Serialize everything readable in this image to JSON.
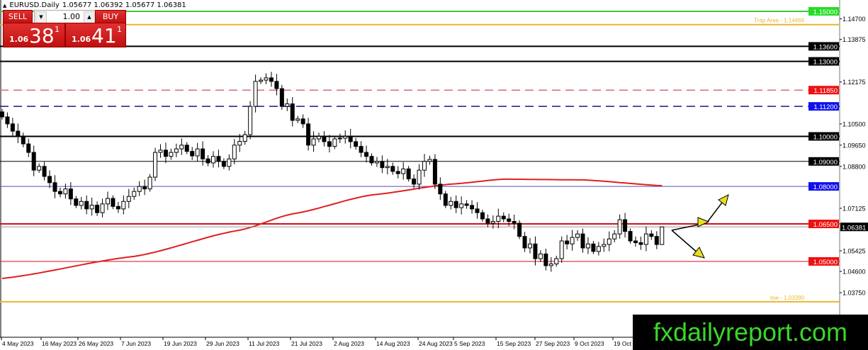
{
  "header": {
    "symbol": "EURUSD.Daily",
    "ohlc": "1.05677 1.06392 1.05677 1.06381"
  },
  "trade_panel": {
    "sell_label": "SELL",
    "buy_label": "BUY",
    "lots": "1.00",
    "sell_prefix": "1.06",
    "sell_big": "38",
    "sell_sup": "1",
    "buy_prefix": "1.06",
    "buy_big": "41",
    "buy_sup": "1"
  },
  "watermark": "fxdailyreport.com",
  "chart_data": {
    "type": "candlestick",
    "symbol": "EURUSD",
    "timeframe": "Daily",
    "ylim": [
      1.0305,
      1.1545
    ],
    "x_ticks": [
      "4 May 2023",
      "16 May 2023",
      "26 May 2023",
      "7 Jun 2023",
      "19 Jun 2023",
      "29 Jun 2023",
      "11 Jul 2023",
      "21 Jul 2023",
      "2 Aug 2023",
      "14 Aug 2023",
      "24 Aug 2023",
      "5 Sep 2023",
      "15 Sep 2023",
      "27 Sep 2023",
      "9 Oct 2023",
      "19 Oct"
    ],
    "y_ticks": [
      "1.14700",
      "1.13875",
      "1.12175",
      "1.10500",
      "1.09650",
      "1.08800",
      "1.07125",
      "1.05425",
      "1.04600",
      "1.03750"
    ],
    "closes": [
      1.1078,
      1.105,
      1.1021,
      1.1,
      1.097,
      1.0936,
      1.0865,
      1.088,
      1.084,
      1.0815,
      1.078,
      1.077,
      1.079,
      1.075,
      1.0724,
      1.074,
      1.071,
      1.0725,
      1.0695,
      1.073,
      1.0752,
      1.072,
      1.071,
      1.074,
      1.076,
      1.078,
      1.08,
      1.079,
      1.0837,
      1.0936,
      1.0945,
      1.092,
      1.0936,
      1.095,
      1.0965,
      1.094,
      1.0922,
      1.095,
      1.091,
      1.0894,
      1.092,
      1.09,
      1.088,
      1.091,
      1.0965,
      1.098,
      1.1007,
      1.112,
      1.122,
      1.1225,
      1.1234,
      1.122,
      1.1191,
      1.112,
      1.113,
      1.1064,
      1.107,
      1.105,
      1.0965,
      1.099,
      1.1,
      1.0979,
      1.096,
      1.099,
      1.0993,
      1.1,
      1.0979,
      1.096,
      1.0936,
      1.092,
      1.0894,
      1.09,
      1.0875,
      1.088,
      1.086,
      1.0851,
      1.087,
      1.083,
      1.0809,
      1.0865,
      1.09,
      1.0908,
      1.0809,
      1.077,
      1.0724,
      1.074,
      1.0715,
      1.073,
      1.0724,
      1.071,
      1.0695,
      1.067,
      1.0653,
      1.066,
      1.0681,
      1.067,
      1.066,
      1.0653,
      1.06,
      1.0554,
      1.057,
      1.0511,
      1.053,
      1.0483,
      1.049,
      1.0511,
      1.0582,
      1.057,
      1.0596,
      1.061,
      1.0554,
      1.057,
      1.054,
      1.056,
      1.0568,
      1.059,
      1.061,
      1.0667,
      1.062,
      1.0582,
      1.0575,
      1.0568,
      1.061,
      1.06,
      1.05677,
      1.06381
    ],
    "last_candle": {
      "open": 1.05677,
      "high": 1.06392,
      "low": 1.05677,
      "close": 1.06381
    },
    "moving_average": {
      "color": "#e02020",
      "points": [
        [
          0,
          1.0432
        ],
        [
          25,
          1.052
        ],
        [
          45,
          1.0625
        ],
        [
          55,
          1.069
        ],
        [
          70,
          1.0766
        ],
        [
          85,
          1.0809
        ],
        [
          95,
          1.0829
        ],
        [
          110,
          1.0826
        ],
        [
          125,
          1.0803
        ]
      ]
    },
    "levels": [
      {
        "price": 1.15,
        "label": "1.15000",
        "color": "#3ec83e",
        "badge": "#22dd22",
        "style": "solid",
        "width": 2
      },
      {
        "price": 1.14469,
        "text": "Trap Area - 1.14469",
        "color": "#e8b830",
        "style": "solid",
        "width": 2
      },
      {
        "price": 1.136,
        "label": "1.13600",
        "color": "#000000",
        "badge": "#000000",
        "style": "solid",
        "width": 2
      },
      {
        "price": 1.13,
        "label": "1.13000",
        "color": "#000000",
        "badge": "#000000",
        "style": "solid",
        "width": 2
      },
      {
        "price": 1.1185,
        "label": "1.11850",
        "color": "#d07070",
        "badge": "#ee1111",
        "style": "dashed",
        "width": 1.5
      },
      {
        "price": 1.112,
        "label": "1.11200",
        "color": "#1a1a80",
        "badge": "#1010ee",
        "style": "dashed",
        "width": 1.5
      },
      {
        "price": 1.1,
        "label": "1.10000",
        "color": "#000000",
        "badge": "#000000",
        "style": "solid",
        "width": 2
      },
      {
        "price": 1.09,
        "label": "1.09000",
        "color": "#000000",
        "badge": "#000000",
        "style": "solid",
        "width": 1
      },
      {
        "price": 1.08,
        "label": "1.08000",
        "color": "#5050b0",
        "badge": "#1010ee",
        "style": "solid",
        "width": 1
      },
      {
        "price": 1.065,
        "label": "1.06500",
        "color": "#d01020",
        "badge": "#ee1111",
        "style": "solid",
        "width": 2
      },
      {
        "price": 1.05,
        "label": "1.05000",
        "color": "#d01020",
        "badge": "#ee1111",
        "style": "solid",
        "width": 1
      },
      {
        "price": 1.0339,
        "text": "low - 1.03390",
        "color": "#e8b830",
        "style": "solid",
        "width": 2
      }
    ],
    "current_price": {
      "price": 1.06381,
      "label": "1.06381"
    }
  }
}
